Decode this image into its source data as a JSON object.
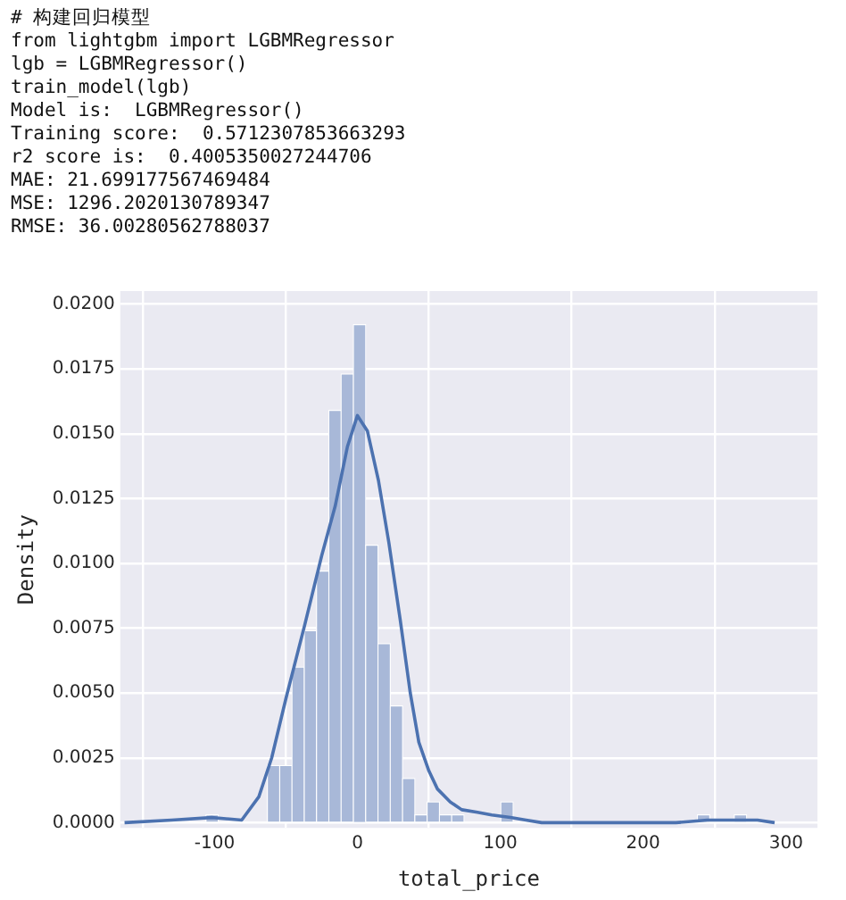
{
  "chart_data": {
    "type": "histogram",
    "annotations": [
      "# 构建回归模型",
      "from lightgbm import LGBMRegressor",
      "lgb = LGBMRegressor()",
      "train_model(lgb)",
      "Model is:  LGBMRegressor()",
      "Training score:  0.5712307853663293",
      "r2 score is:  0.4005350027244706",
      "MAE: 21.699177567469484",
      "MSE: 1296.2020130789347",
      "RMSE: 36.00280562788037"
    ],
    "xlabel": "total_price",
    "ylabel": "Density",
    "bins": [
      -106,
      -97.4,
      -88.8,
      -80.2,
      -71.6,
      -63,
      -54.4,
      -45.8,
      -37.2,
      -28.6,
      -20,
      -11.4,
      -2.8,
      5.8,
      14.4,
      23,
      31.6,
      40.2,
      48.8,
      57.4,
      66,
      74.6,
      83.2,
      91.8,
      100.4,
      109,
      117.6,
      126.2,
      134.8,
      143.4,
      152,
      160.6,
      169.2,
      177.8,
      186.4,
      195,
      203.6,
      212.2,
      220.8,
      229.4,
      238,
      246.6,
      255.2,
      263.8,
      272.4,
      281
    ],
    "values": [
      0.0003,
      0,
      0,
      0,
      0,
      0.0022,
      0.0022,
      0.006,
      0.0074,
      0.0097,
      0.0159,
      0.0173,
      0.0192,
      0.0107,
      0.0069,
      0.0045,
      0.0017,
      0.0003,
      0.0008,
      0.0003,
      0.0003,
      0,
      0,
      0,
      0.0008,
      0,
      0,
      0,
      0,
      0,
      0,
      0,
      0,
      0,
      0,
      0,
      0,
      0,
      0,
      0,
      0.0003,
      0,
      0,
      0.0003,
      0
    ],
    "color": "#a8b8d8",
    "series": [
      {
        "type": "line",
        "color": "#4c72b0",
        "x": [
          -163,
          -130,
          -102,
          -81,
          -69,
          -60,
          -50,
          -37,
          -25,
          -15.6,
          -7,
          0,
          7,
          14.7,
          22,
          30,
          37,
          43,
          50,
          56,
          65,
          73,
          84,
          94,
          107,
          118,
          129,
          160,
          200,
          223,
          245,
          266,
          280,
          292
        ],
        "values": [
          0,
          0.0001,
          0.0002,
          0.0001,
          0.001,
          0.0025,
          0.0048,
          0.0076,
          0.0103,
          0.0122,
          0.0145,
          0.0157,
          0.0151,
          0.0132,
          0.0108,
          0.0078,
          0.005,
          0.0031,
          0.002,
          0.0013,
          0.0008,
          0.0005,
          0.0004,
          0.0003,
          0.0002,
          0.0001,
          0,
          0,
          0,
          0,
          0.0001,
          0.0001,
          0.0001,
          0
        ]
      }
    ],
    "xlim": [
      -166,
      322
    ],
    "ylim": [
      -0.0002,
      0.0205
    ],
    "xticks": [
      -100,
      0,
      100,
      200,
      300
    ],
    "yticks": [
      {
        "value": 0,
        "label": "0.0000"
      },
      {
        "value": 0.0025,
        "label": "0.0025"
      },
      {
        "value": 0.005,
        "label": "0.0050"
      },
      {
        "value": 0.0075,
        "label": "0.0075"
      },
      {
        "value": 0.01,
        "label": "0.0100"
      },
      {
        "value": 0.0125,
        "label": "0.0125"
      },
      {
        "value": 0.015,
        "label": "0.0150"
      },
      {
        "value": 0.0175,
        "label": "0.0175"
      },
      {
        "value": 0.02,
        "label": "0.0200"
      }
    ],
    "grid": true,
    "legend": false
  }
}
